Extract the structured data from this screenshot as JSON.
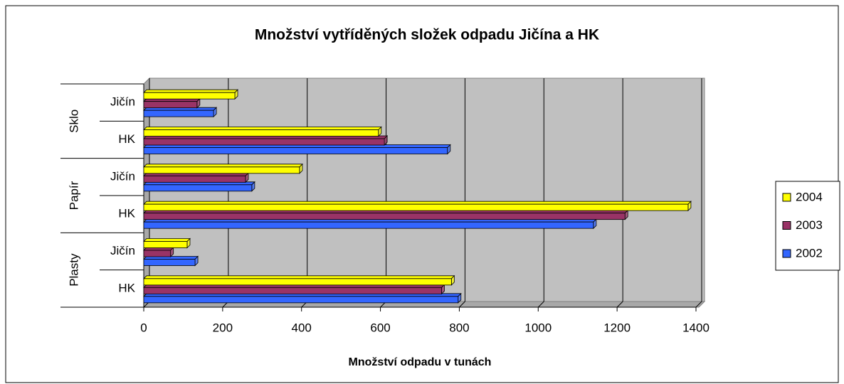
{
  "chart_data": {
    "type": "bar",
    "orientation": "horizontal",
    "title": "Množství vytříděných složek odpadu Jičína a HK",
    "x_label": "Množství odpadu v tunách",
    "categories": [
      "HK",
      "Jičín",
      "HK",
      "Jičín",
      "HK",
      "Jičín"
    ],
    "groups": [
      "Plasty",
      "Papír",
      "Sklo"
    ],
    "xlim": [
      0,
      1400
    ],
    "xticks": [
      0,
      200,
      400,
      600,
      800,
      1000,
      1200,
      1400
    ],
    "grid": true,
    "legend": "right",
    "series": [
      {
        "name": "2002",
        "color": "#3366ff",
        "values": [
          797,
          130,
          1140,
          274,
          770,
          177
        ]
      },
      {
        "name": "2003",
        "color": "#993366",
        "values": [
          755,
          68,
          1220,
          258,
          610,
          135
        ]
      },
      {
        "name": "2004",
        "color": "#ffff00",
        "values": [
          780,
          110,
          1380,
          395,
          595,
          231
        ]
      }
    ]
  }
}
